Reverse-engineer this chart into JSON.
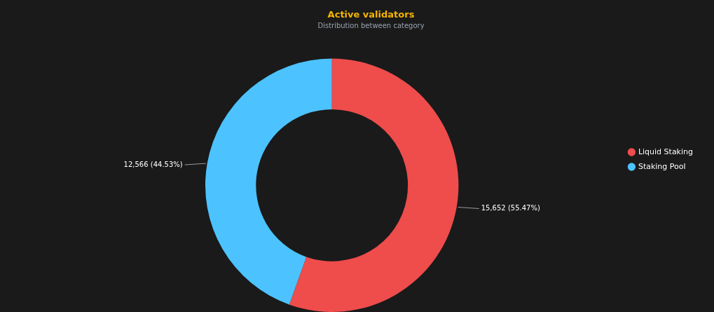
{
  "chart_data": {
    "type": "donut",
    "title": "Active validators",
    "subtitle": "Distribution between category",
    "categories": [
      "Liquid Staking",
      "Staking Pool"
    ],
    "values": [
      15652,
      12566
    ],
    "colors": [
      "#ef4c4c",
      "#4cc3ff"
    ],
    "value_labels": [
      "15,652 (55.47%)",
      "12,566 (44.53%)"
    ],
    "legend": "right"
  }
}
